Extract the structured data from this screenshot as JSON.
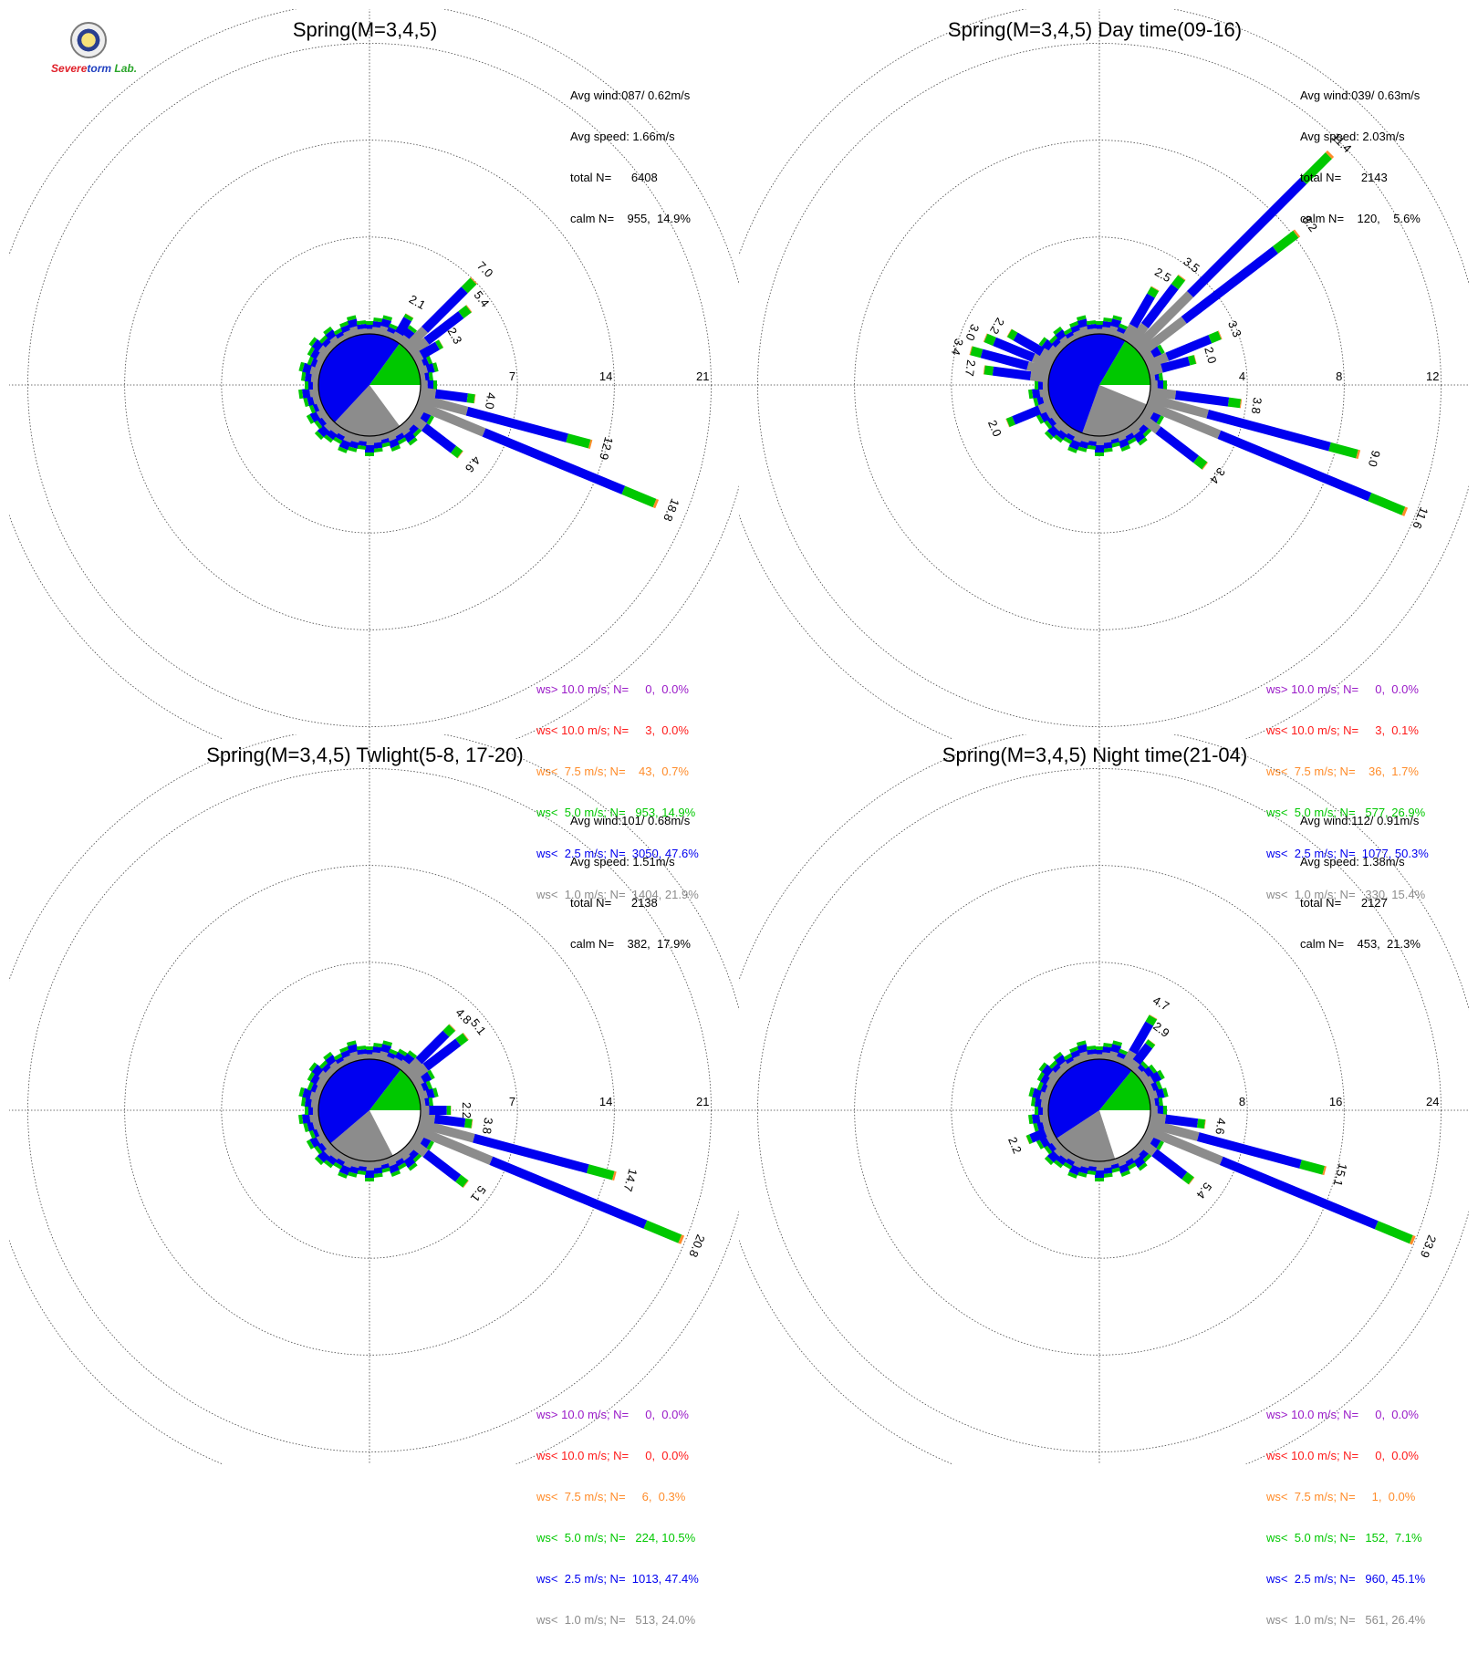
{
  "colors": {
    "gt10": "#9a1bc8",
    "lt10": "#ff1a1a",
    "lt7_5": "#ff8c2a",
    "lt5": "#00c800",
    "lt2_5": "#0000f0",
    "lt1": "#8c8c8c",
    "calm": "#ffffff",
    "grid": "#444444"
  },
  "logo": {
    "part1": "S",
    "part2": "evere",
    "part3": "torm",
    "part4": "Lab."
  },
  "panels": [
    {
      "title": "Spring(M=3,4,5)",
      "stats": [
        "Avg wind:087/ 0.62m/s",
        "Avg speed: 1.66m/s",
        "total N=      6408",
        "calm N=    955,  14.9%"
      ],
      "legend": [
        "ws> 10.0 m/s; N=     0,  0.0%",
        "ws< 10.0 m/s; N=     3,  0.0%",
        "ws<  7.5 m/s; N=    43,  0.7%",
        "ws<  5.0 m/s; N=   953, 14.9%",
        "ws<  2.5 m/s; N=  3050, 47.6%",
        "ws<  1.0 m/s; N=  1404, 21.9%"
      ],
      "chart_data": {
        "type": "wind-rose",
        "ring_labels": [
          "7",
          "14",
          "21"
        ],
        "rmax": 24,
        "calm_pct": 14.9,
        "sectors": [
          {
            "dir": 112.5,
            "total": 18.8,
            "label": "18.8"
          },
          {
            "dir": 105.0,
            "total": 12.9,
            "label": "12.9"
          },
          {
            "dir": 97.5,
            "total": 4.0,
            "label": "4.0"
          },
          {
            "dir": 127.5,
            "total": 4.6,
            "label": "4.6"
          },
          {
            "dir": 45.0,
            "total": 7.0,
            "label": "7.0"
          },
          {
            "dir": 52.5,
            "total": 5.4,
            "label": "5.4"
          },
          {
            "dir": 60.0,
            "total": 2.3,
            "label": "2.3"
          },
          {
            "dir": 30.0,
            "total": 2.1,
            "label": "2.1"
          }
        ]
      }
    },
    {
      "title": "Spring(M=3,4,5) Day time(09-16)",
      "stats": [
        "Avg wind:039/ 0.63m/s",
        "Avg speed: 2.03m/s",
        "total N=      2143",
        "calm N=    120,    5.6%"
      ],
      "legend": [
        "ws> 10.0 m/s; N=     0,  0.0%",
        "ws< 10.0 m/s; N=     3,  0.1%",
        "ws<  7.5 m/s; N=    36,  1.7%",
        "ws<  5.0 m/s; N=   577, 26.9%",
        "ws<  2.5 m/s; N=  1077, 50.3%",
        "ws<  1.0 m/s; N=   330, 15.4%"
      ],
      "chart_data": {
        "type": "wind-rose",
        "ring_labels": [
          "4",
          "8",
          "12"
        ],
        "rmax": 13.714,
        "calm_pct": 5.6,
        "sectors": [
          {
            "dir": 45.0,
            "total": 11.4,
            "label": "11.4"
          },
          {
            "dir": 52.5,
            "total": 8.2,
            "label": "8.2"
          },
          {
            "dir": 112.5,
            "total": 11.6,
            "label": "11.6"
          },
          {
            "dir": 105.0,
            "total": 9.0,
            "label": "9.0"
          },
          {
            "dir": 97.5,
            "total": 3.8,
            "label": "3.8"
          },
          {
            "dir": 127.5,
            "total": 3.4,
            "label": "3.4"
          },
          {
            "dir": 37.5,
            "total": 3.5,
            "label": "3.5"
          },
          {
            "dir": 30.0,
            "total": 2.5,
            "label": "2.5"
          },
          {
            "dir": 67.5,
            "total": 3.3,
            "label": "3.3"
          },
          {
            "dir": 75.0,
            "total": 2.0,
            "label": "2.0"
          },
          {
            "dir": 292.5,
            "total": 3.0,
            "label": "3.0"
          },
          {
            "dir": 285.0,
            "total": 3.4,
            "label": "3.4"
          },
          {
            "dir": 277.5,
            "total": 2.7,
            "label": "2.7"
          },
          {
            "dir": 300.0,
            "total": 2.2,
            "label": "2.2"
          },
          {
            "dir": 247.5,
            "total": 2.0,
            "label": "2.0"
          }
        ]
      }
    },
    {
      "title": "Spring(M=3,4,5) Twlight(5-8, 17-20)",
      "stats": [
        "Avg wind:101/ 0.68m/s",
        "Avg speed: 1.51m/s",
        "total N=      2138",
        "calm N=    382,  17.9%"
      ],
      "legend": [
        "ws> 10.0 m/s; N=     0,  0.0%",
        "ws< 10.0 m/s; N=     0,  0.0%",
        "ws<  7.5 m/s; N=     6,  0.3%",
        "ws<  5.0 m/s; N=   224, 10.5%",
        "ws<  2.5 m/s; N=  1013, 47.4%",
        "ws<  1.0 m/s; N=   513, 24.0%"
      ],
      "chart_data": {
        "type": "wind-rose",
        "ring_labels": [
          "7",
          "14",
          "21"
        ],
        "rmax": 24,
        "calm_pct": 17.9,
        "sectors": [
          {
            "dir": 112.5,
            "total": 20.8,
            "label": "20.8"
          },
          {
            "dir": 105.0,
            "total": 14.7,
            "label": "14.7"
          },
          {
            "dir": 127.5,
            "total": 5.1,
            "label": "5.1"
          },
          {
            "dir": 97.5,
            "total": 3.8,
            "label": "3.8"
          },
          {
            "dir": 90.0,
            "total": 2.2,
            "label": "2.2"
          },
          {
            "dir": 45.0,
            "total": 4.8,
            "label": "4.8"
          },
          {
            "dir": 52.5,
            "total": 5.1,
            "label": "5.1"
          }
        ]
      }
    },
    {
      "title": "Spring(M=3,4,5) Night time(21-04)",
      "stats": [
        "Avg wind:112/ 0.91m/s",
        "Avg speed: 1.38m/s",
        "total N=      2127",
        "calm N=    453,  21.3%"
      ],
      "legend": [
        "ws> 10.0 m/s; N=     0,  0.0%",
        "ws< 10.0 m/s; N=     0,  0.0%",
        "ws<  7.5 m/s; N=     1,  0.0%",
        "ws<  5.0 m/s; N=   152,  7.1%",
        "ws<  2.5 m/s; N=   960, 45.1%",
        "ws<  1.0 m/s; N=   561, 26.4%"
      ],
      "chart_data": {
        "type": "wind-rose",
        "ring_labels": [
          "8",
          "16",
          "24"
        ],
        "rmax": 27.43,
        "calm_pct": 21.3,
        "sectors": [
          {
            "dir": 112.5,
            "total": 23.9,
            "label": "23.9"
          },
          {
            "dir": 105.0,
            "total": 15.1,
            "label": "15.1"
          },
          {
            "dir": 97.5,
            "total": 4.6,
            "label": "4.6"
          },
          {
            "dir": 127.5,
            "total": 5.4,
            "label": "5.4"
          },
          {
            "dir": 30.0,
            "total": 4.7,
            "label": "4.7"
          },
          {
            "dir": 37.5,
            "total": 2.9,
            "label": "2.9"
          },
          {
            "dir": 247.5,
            "total": 2.2,
            "label": "2.2"
          }
        ]
      }
    }
  ]
}
